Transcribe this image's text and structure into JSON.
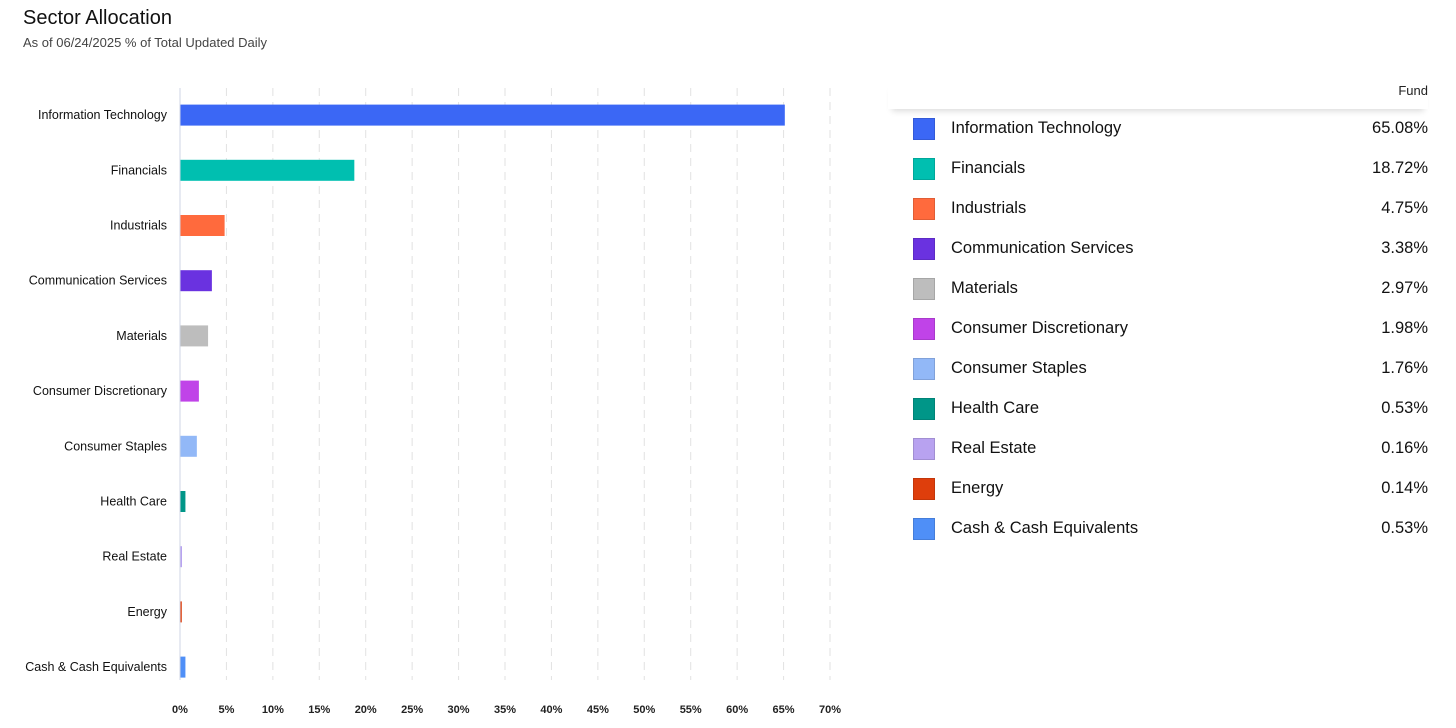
{
  "header": {
    "title": "Sector Allocation",
    "subtitle": "As of 06/24/2025 % of Total Updated Daily"
  },
  "legend": {
    "column_header": "Fund"
  },
  "chart_data": {
    "type": "bar",
    "orientation": "horizontal",
    "title": "Sector Allocation",
    "xlabel": "",
    "ylabel": "",
    "xlim": [
      0,
      70
    ],
    "x_ticks": [
      "0%",
      "5%",
      "10%",
      "15%",
      "20%",
      "25%",
      "30%",
      "35%",
      "40%",
      "45%",
      "50%",
      "55%",
      "60%",
      "65%",
      "70%"
    ],
    "grid": "vertical dashed",
    "legend_position": "right",
    "categories": [
      "Information Technology",
      "Financials",
      "Industrials",
      "Communication Services",
      "Materials",
      "Consumer Discretionary",
      "Consumer Staples",
      "Health Care",
      "Real Estate",
      "Energy",
      "Cash & Cash Equivalents"
    ],
    "values": [
      65.08,
      18.72,
      4.75,
      3.38,
      2.97,
      1.98,
      1.76,
      0.53,
      0.16,
      0.14,
      0.53
    ],
    "value_labels": [
      "65.08%",
      "18.72%",
      "4.75%",
      "3.38%",
      "2.97%",
      "1.98%",
      "1.76%",
      "0.53%",
      "0.16%",
      "0.14%",
      "0.53%"
    ],
    "colors": [
      "#3b67f5",
      "#00bfb0",
      "#ff6a3d",
      "#6a32e0",
      "#bdbdbd",
      "#c043e8",
      "#92b8f7",
      "#009688",
      "#b8a2f0",
      "#de3e0c",
      "#4f8ff7"
    ]
  }
}
